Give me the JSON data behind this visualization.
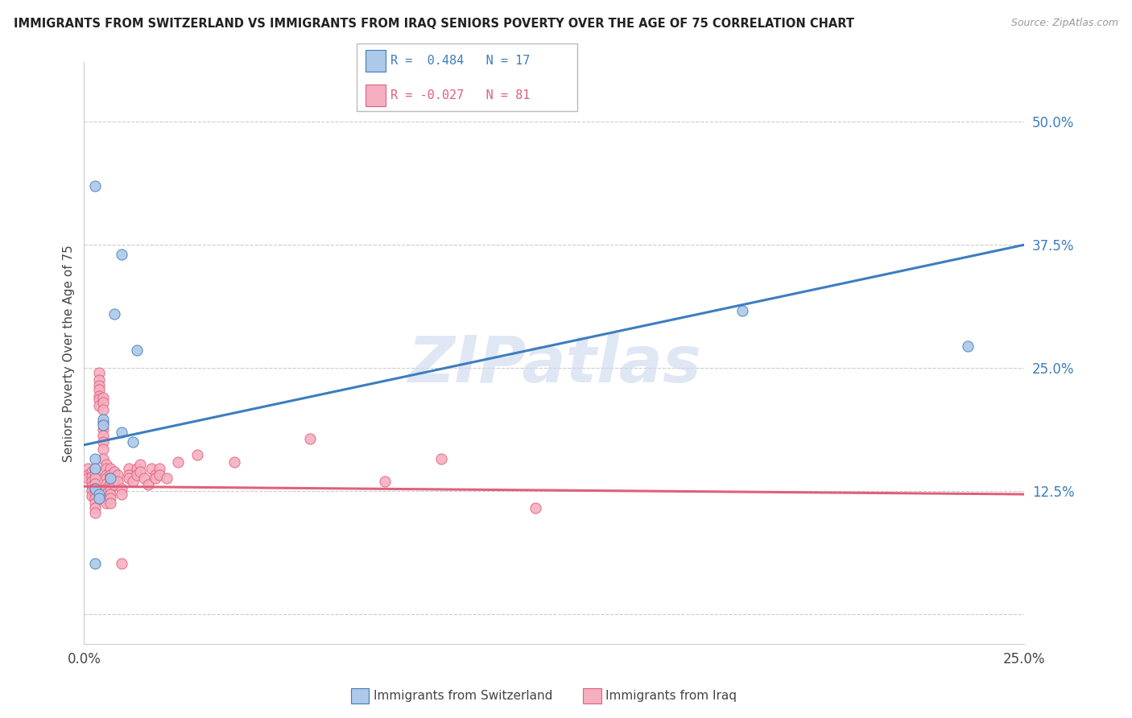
{
  "title": "IMMIGRANTS FROM SWITZERLAND VS IMMIGRANTS FROM IRAQ SENIORS POVERTY OVER THE AGE OF 75 CORRELATION CHART",
  "source": "Source: ZipAtlas.com",
  "ylabel": "Seniors Poverty Over the Age of 75",
  "xlim": [
    0,
    0.25
  ],
  "ylim": [
    -0.03,
    0.56
  ],
  "yticks": [
    0.0,
    0.125,
    0.25,
    0.375,
    0.5
  ],
  "ytick_labels": [
    "",
    "12.5%",
    "25.0%",
    "37.5%",
    "50.0%"
  ],
  "xticks": [
    0.0,
    0.05,
    0.1,
    0.15,
    0.2,
    0.25
  ],
  "xtick_labels": [
    "0.0%",
    "",
    "",
    "",
    "",
    "25.0%"
  ],
  "r_switzerland": 0.484,
  "n_switzerland": 17,
  "r_iraq": -0.027,
  "n_iraq": 81,
  "color_switzerland": "#adc8e8",
  "color_iraq": "#f5afc0",
  "line_color_switzerland": "#3d7dbf",
  "line_color_iraq": "#e0607a",
  "watermark": "ZIPatlas",
  "watermark_color": "#ccd8ee",
  "background_color": "#ffffff",
  "sw_line": [
    [
      0.0,
      0.172
    ],
    [
      0.25,
      0.375
    ]
  ],
  "iq_line": [
    [
      0.0,
      0.13
    ],
    [
      0.25,
      0.122
    ]
  ],
  "switzerland_points": [
    [
      0.003,
      0.435
    ],
    [
      0.01,
      0.365
    ],
    [
      0.008,
      0.305
    ],
    [
      0.014,
      0.268
    ],
    [
      0.005,
      0.198
    ],
    [
      0.005,
      0.192
    ],
    [
      0.01,
      0.185
    ],
    [
      0.013,
      0.175
    ],
    [
      0.003,
      0.158
    ],
    [
      0.003,
      0.148
    ],
    [
      0.007,
      0.138
    ],
    [
      0.003,
      0.128
    ],
    [
      0.004,
      0.122
    ],
    [
      0.004,
      0.118
    ],
    [
      0.003,
      0.052
    ],
    [
      0.175,
      0.308
    ],
    [
      0.235,
      0.272
    ]
  ],
  "iraq_points": [
    [
      0.001,
      0.148
    ],
    [
      0.001,
      0.142
    ],
    [
      0.001,
      0.138
    ],
    [
      0.002,
      0.145
    ],
    [
      0.002,
      0.14
    ],
    [
      0.002,
      0.135
    ],
    [
      0.002,
      0.13
    ],
    [
      0.002,
      0.125
    ],
    [
      0.002,
      0.12
    ],
    [
      0.003,
      0.148
    ],
    [
      0.003,
      0.143
    ],
    [
      0.003,
      0.138
    ],
    [
      0.003,
      0.133
    ],
    [
      0.003,
      0.128
    ],
    [
      0.003,
      0.123
    ],
    [
      0.003,
      0.118
    ],
    [
      0.003,
      0.113
    ],
    [
      0.003,
      0.108
    ],
    [
      0.003,
      0.103
    ],
    [
      0.004,
      0.245
    ],
    [
      0.004,
      0.238
    ],
    [
      0.004,
      0.232
    ],
    [
      0.004,
      0.228
    ],
    [
      0.004,
      0.222
    ],
    [
      0.004,
      0.218
    ],
    [
      0.004,
      0.212
    ],
    [
      0.005,
      0.22
    ],
    [
      0.005,
      0.215
    ],
    [
      0.005,
      0.208
    ],
    [
      0.005,
      0.195
    ],
    [
      0.005,
      0.188
    ],
    [
      0.005,
      0.182
    ],
    [
      0.005,
      0.175
    ],
    [
      0.005,
      0.168
    ],
    [
      0.005,
      0.158
    ],
    [
      0.006,
      0.152
    ],
    [
      0.006,
      0.148
    ],
    [
      0.006,
      0.142
    ],
    [
      0.006,
      0.138
    ],
    [
      0.006,
      0.133
    ],
    [
      0.006,
      0.128
    ],
    [
      0.006,
      0.123
    ],
    [
      0.006,
      0.118
    ],
    [
      0.006,
      0.113
    ],
    [
      0.007,
      0.148
    ],
    [
      0.007,
      0.142
    ],
    [
      0.007,
      0.138
    ],
    [
      0.007,
      0.133
    ],
    [
      0.007,
      0.128
    ],
    [
      0.007,
      0.122
    ],
    [
      0.007,
      0.118
    ],
    [
      0.007,
      0.113
    ],
    [
      0.008,
      0.145
    ],
    [
      0.008,
      0.138
    ],
    [
      0.008,
      0.132
    ],
    [
      0.009,
      0.142
    ],
    [
      0.009,
      0.135
    ],
    [
      0.01,
      0.128
    ],
    [
      0.01,
      0.122
    ],
    [
      0.01,
      0.052
    ],
    [
      0.012,
      0.148
    ],
    [
      0.012,
      0.142
    ],
    [
      0.012,
      0.138
    ],
    [
      0.013,
      0.135
    ],
    [
      0.014,
      0.148
    ],
    [
      0.014,
      0.142
    ],
    [
      0.015,
      0.152
    ],
    [
      0.015,
      0.145
    ],
    [
      0.016,
      0.138
    ],
    [
      0.017,
      0.132
    ],
    [
      0.018,
      0.148
    ],
    [
      0.019,
      0.142
    ],
    [
      0.019,
      0.138
    ],
    [
      0.02,
      0.148
    ],
    [
      0.02,
      0.142
    ],
    [
      0.022,
      0.138
    ],
    [
      0.025,
      0.155
    ],
    [
      0.03,
      0.162
    ],
    [
      0.04,
      0.155
    ],
    [
      0.06,
      0.178
    ],
    [
      0.08,
      0.135
    ],
    [
      0.095,
      0.158
    ],
    [
      0.12,
      0.108
    ]
  ]
}
